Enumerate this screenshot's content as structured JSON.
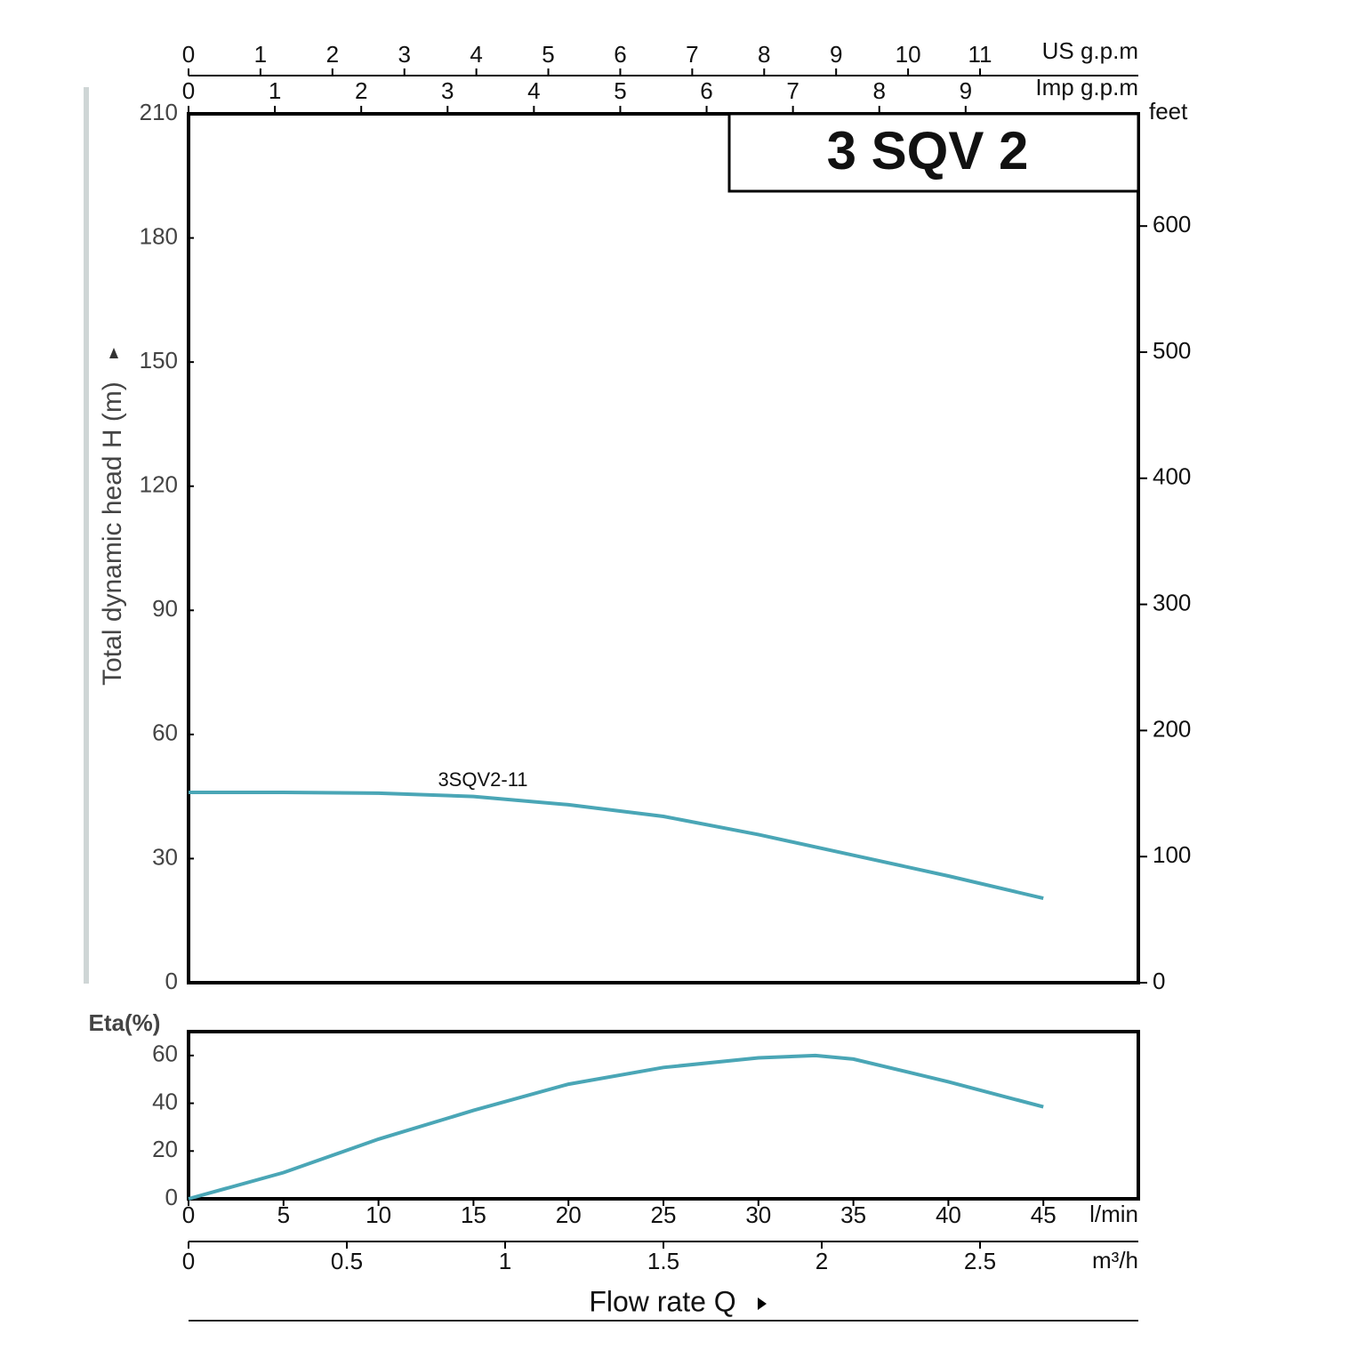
{
  "chart_data": [
    {
      "type": "line",
      "title": "3 SQV 2",
      "y_label": "Total dynamic head H (m)",
      "ylim": [
        0,
        210
      ],
      "yticks": [
        0,
        30,
        60,
        90,
        120,
        150,
        180,
        210
      ],
      "y2_label": "feet",
      "y2lim": [
        0,
        689
      ],
      "y2ticks": [
        0,
        100,
        200,
        300,
        400,
        500,
        600
      ],
      "xlim": [
        0,
        50
      ],
      "top_axes": [
        {
          "label": "US g.p.m",
          "xlim": [
            0,
            13.2
          ],
          "xticks": [
            0,
            1,
            2,
            3,
            4,
            5,
            6,
            7,
            8,
            9,
            10,
            11
          ]
        },
        {
          "label": "Imp g.p.m",
          "xlim": [
            0,
            11
          ],
          "xticks": [
            0,
            1,
            2,
            3,
            4,
            5,
            6,
            7,
            8,
            9
          ]
        }
      ],
      "x": [
        0,
        5,
        10,
        15,
        20,
        25,
        30,
        35,
        40,
        45
      ],
      "series": [
        {
          "name": "3SQV2-11",
          "color": "#4aa6b6",
          "values": [
            46,
            46,
            45.8,
            45,
            43,
            40.2,
            35.8,
            30.8,
            25.8,
            20.4
          ]
        }
      ]
    },
    {
      "type": "line",
      "y_label": "Eta(%)",
      "ylim": [
        0,
        70
      ],
      "yticks": [
        0,
        20,
        40,
        60
      ],
      "xlim": [
        0,
        50
      ],
      "xticks": [
        0,
        5,
        10,
        15,
        20,
        25,
        30,
        35,
        40,
        45
      ],
      "x_unit": "l/min",
      "x2lim": [
        0,
        3
      ],
      "x2ticks": [
        0,
        0.5,
        1,
        1.5,
        2,
        2.5
      ],
      "x2_unit": "m³/h",
      "x_label": "Flow  rate  Q",
      "x": [
        0,
        5,
        10,
        15,
        20,
        25,
        30,
        33,
        35,
        40,
        45
      ],
      "series": [
        {
          "color": "#4aa6b6",
          "values": [
            0,
            11,
            25,
            37,
            48,
            55,
            59,
            60,
            58.5,
            49,
            38.5
          ]
        }
      ]
    }
  ]
}
